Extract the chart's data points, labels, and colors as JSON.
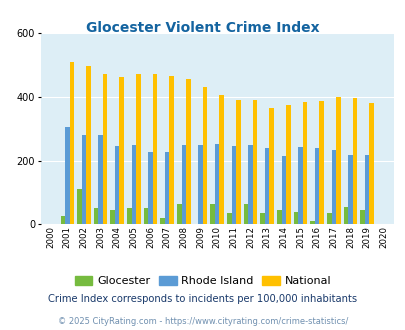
{
  "title": "Glocester Violent Crime Index",
  "years": [
    2000,
    2001,
    2002,
    2003,
    2004,
    2005,
    2006,
    2007,
    2008,
    2009,
    2010,
    2011,
    2012,
    2013,
    2014,
    2015,
    2016,
    2017,
    2018,
    2019,
    2020
  ],
  "glocester": [
    0,
    25,
    110,
    50,
    45,
    50,
    50,
    20,
    65,
    0,
    65,
    35,
    65,
    35,
    45,
    40,
    10,
    35,
    55,
    45,
    0
  ],
  "rhode_island": [
    0,
    305,
    280,
    280,
    245,
    248,
    228,
    228,
    248,
    248,
    252,
    245,
    250,
    238,
    215,
    242,
    238,
    232,
    218,
    218,
    0
  ],
  "national": [
    0,
    510,
    495,
    470,
    463,
    470,
    472,
    465,
    455,
    430,
    405,
    390,
    390,
    365,
    375,
    383,
    386,
    399,
    397,
    382,
    0
  ],
  "glocester_color": "#76bb3f",
  "rhode_island_color": "#5b9bd5",
  "national_color": "#ffc000",
  "bg_color": "#ddeef6",
  "title_color": "#1464a0",
  "ylim": [
    0,
    600
  ],
  "yticks": [
    0,
    200,
    400,
    600
  ],
  "subtitle": "Crime Index corresponds to incidents per 100,000 inhabitants",
  "footer": "© 2025 CityRating.com - https://www.cityrating.com/crime-statistics/",
  "subtitle_color": "#1a3a6b",
  "footer_color": "#7090b0"
}
